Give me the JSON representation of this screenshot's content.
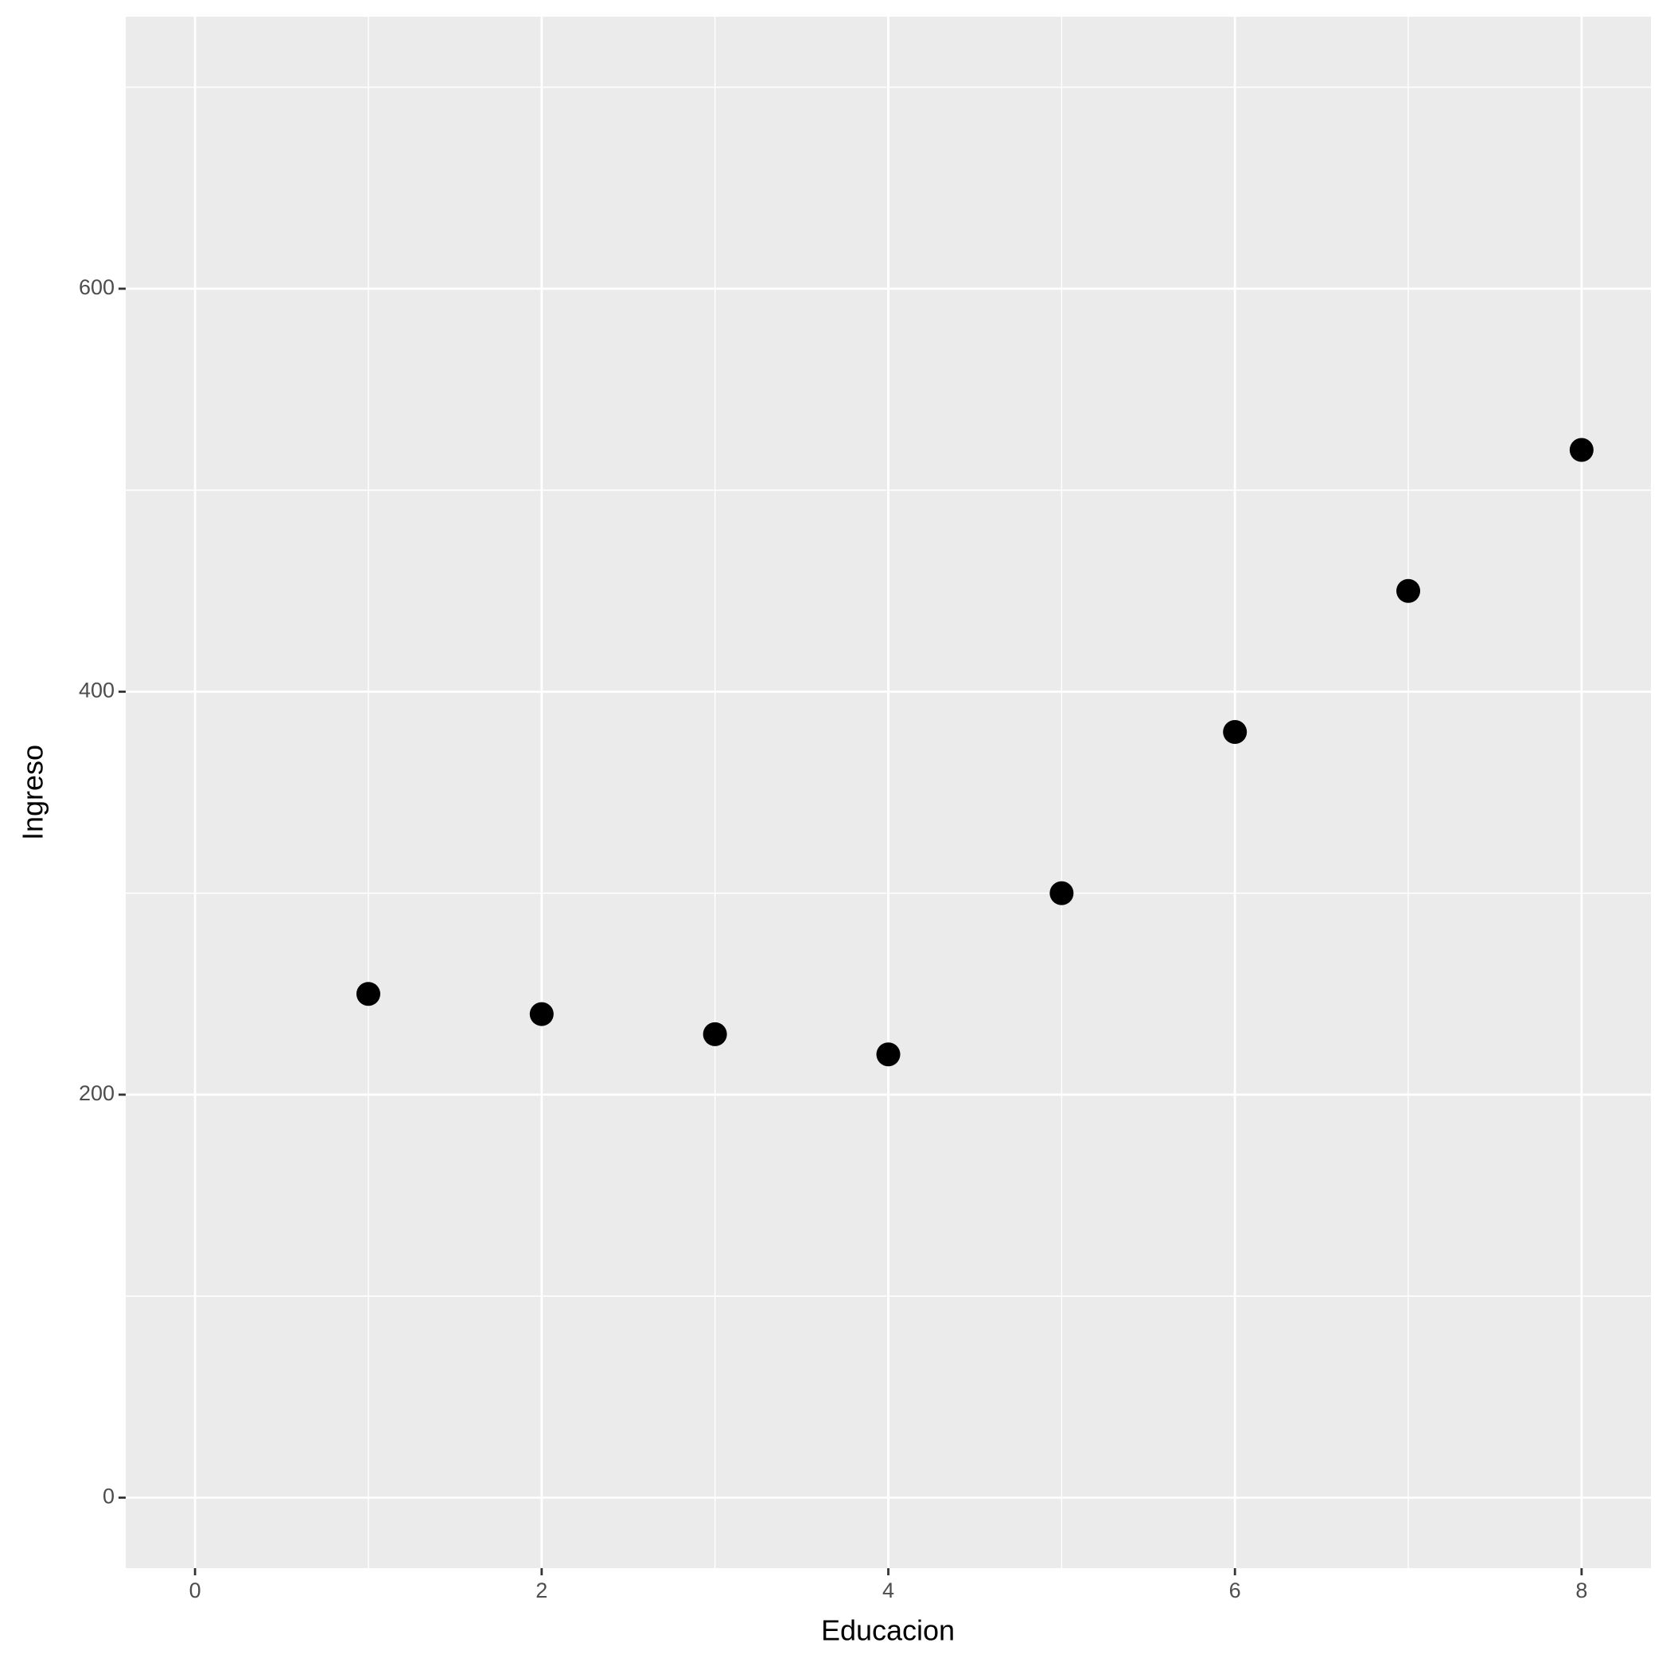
{
  "chart_data": {
    "type": "scatter",
    "x_label": "Educacion",
    "y_label": "Ingreso",
    "x": [
      1,
      2,
      3,
      4,
      5,
      6,
      7,
      8
    ],
    "series": [
      {
        "color": "#000000",
        "values": [
          250,
          240,
          230,
          220,
          300,
          380,
          450,
          520
        ]
      }
    ],
    "xlim": [
      -0.4,
      8.4
    ],
    "ylim": [
      -35,
      735
    ],
    "xticks": [
      0,
      2,
      4,
      6,
      8
    ],
    "yticks": [
      0,
      200,
      400,
      600
    ],
    "xminor": [
      1,
      3,
      5,
      7
    ],
    "yminor": [
      100,
      300,
      500,
      700
    ],
    "grid": true,
    "panel_color": "#ebebeb"
  }
}
